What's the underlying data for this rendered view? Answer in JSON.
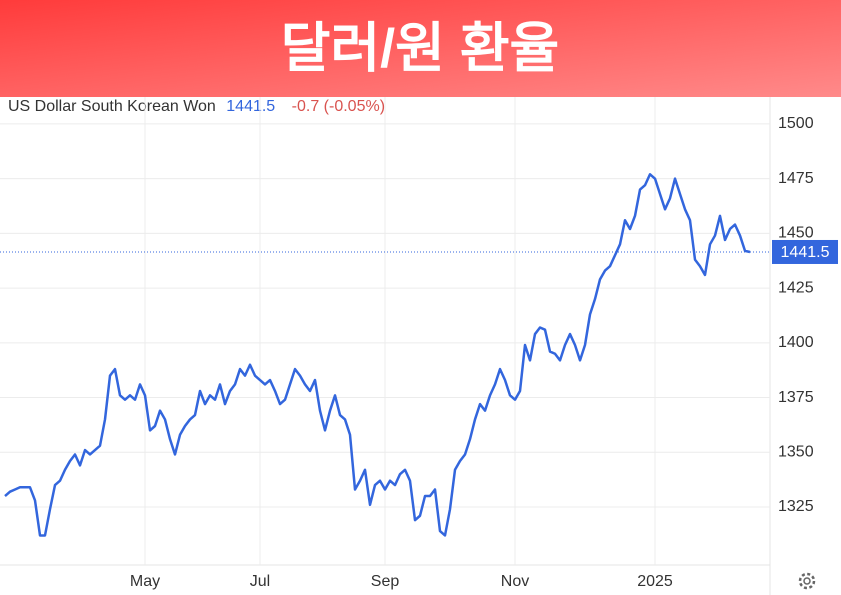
{
  "chart_data": {
    "type": "line",
    "title": "달러/원 환율",
    "change": "-0.7 (-0.05%)",
    "categories": [
      null,
      null,
      null,
      null,
      null,
      null,
      null,
      null,
      null,
      null,
      null,
      null,
      null,
      null,
      null,
      null,
      null,
      null,
      null,
      null,
      null,
      null,
      null,
      null,
      null,
      null,
      null,
      null,
      "May",
      null,
      null,
      null,
      null,
      null,
      null,
      null,
      null,
      null,
      null,
      null,
      null,
      null,
      null,
      null,
      null,
      null,
      null,
      null,
      null,
      null,
      null,
      "Jul",
      null,
      null,
      null,
      null,
      null,
      null,
      null,
      null,
      null,
      null,
      null,
      null,
      null,
      null,
      null,
      null,
      null,
      null,
      null,
      null,
      null,
      null,
      null,
      null,
      "Sep",
      null,
      null,
      null,
      null,
      null,
      null,
      null,
      null,
      null,
      null,
      null,
      null,
      null,
      null,
      null,
      null,
      null,
      null,
      null,
      null,
      null,
      null,
      null,
      null,
      null,
      "Nov",
      null,
      null,
      null,
      null,
      null,
      null,
      null,
      null,
      null,
      null,
      null,
      null,
      null,
      null,
      null,
      null,
      null,
      null,
      null,
      null,
      null,
      null,
      null,
      null,
      null,
      null,
      null,
      "2025",
      null,
      null,
      null,
      null,
      null,
      null,
      null,
      null,
      null,
      null,
      null,
      null,
      null,
      null,
      null,
      null,
      null,
      null,
      null
    ],
    "series": [
      {
        "name": "US Dollar South Korean Won",
        "color": "#3366dd",
        "values": [
          1330,
          1332,
          1333,
          1334,
          1334,
          1334,
          1328,
          1312,
          1312,
          1324,
          1335,
          1337,
          1342,
          1346,
          1349,
          1344,
          1351,
          1349,
          1351,
          1353,
          1365,
          1385,
          1388,
          1376,
          1374,
          1376,
          1374,
          1381,
          1376,
          1360,
          1362,
          1369,
          1365,
          1356,
          1349,
          1358,
          1362,
          1365,
          1367,
          1378,
          1372,
          1376,
          1374,
          1381,
          1372,
          1378,
          1381,
          1388,
          1385,
          1390,
          1385,
          1383,
          1381,
          1383,
          1378,
          1372,
          1374,
          1381,
          1388,
          1385,
          1381,
          1378,
          1383,
          1369,
          1360,
          1369,
          1376,
          1367,
          1365,
          1358,
          1333,
          1337,
          1342,
          1326,
          1335,
          1337,
          1333,
          1337,
          1335,
          1340,
          1342,
          1337,
          1319,
          1321,
          1330,
          1330,
          1333,
          1314,
          1312,
          1324,
          1342,
          1346,
          1349,
          1356,
          1365,
          1372,
          1369,
          1376,
          1381,
          1388,
          1383,
          1376,
          1374,
          1378,
          1399,
          1392,
          1404,
          1407,
          1406,
          1396,
          1395,
          1392,
          1399,
          1404,
          1399,
          1392,
          1399,
          1413,
          1420,
          1429,
          1433,
          1435,
          1440,
          1445,
          1456,
          1452,
          1458,
          1470,
          1472,
          1477,
          1475,
          1468,
          1461,
          1466,
          1475,
          1468,
          1461,
          1456,
          1438,
          1435,
          1431,
          1445,
          1449,
          1458,
          1447,
          1452,
          1454,
          1449,
          1442,
          1441.5
        ]
      }
    ],
    "ylim": [
      1298.5,
      1512.3
    ],
    "yticks": [
      1325,
      1350,
      1375,
      1400,
      1425,
      1450,
      1475,
      1500
    ],
    "grid": true
  }
}
